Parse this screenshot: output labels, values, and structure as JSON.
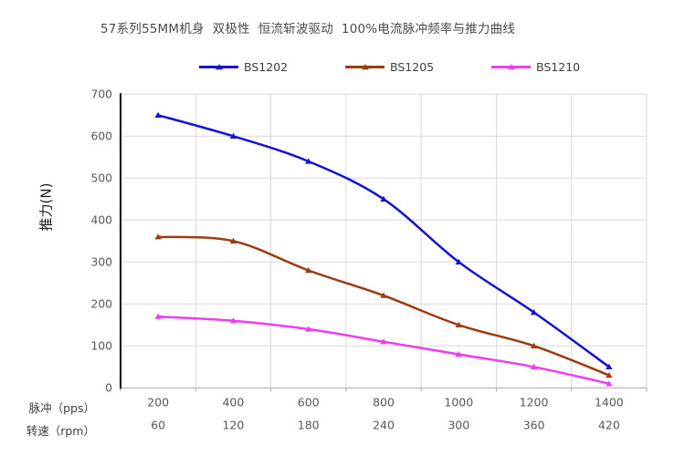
{
  "chart_data": {
    "type": "line",
    "title": "57系列55MM机身  双极性  恒流斩波驱动  100%电流脉冲频率与推力曲线",
    "ylabel": "推力(N)",
    "ylim": [
      0,
      700
    ],
    "y_ticks": [
      0,
      100,
      200,
      300,
      400,
      500,
      600,
      700
    ],
    "grid": true,
    "legend_position": "top",
    "x_axis_rows": [
      {
        "label": "脉冲（pps）",
        "values": [
          200,
          400,
          600,
          800,
          1000,
          1200,
          1400
        ]
      },
      {
        "label": "转速（rpm）",
        "values": [
          60,
          120,
          180,
          240,
          300,
          360,
          420
        ]
      }
    ],
    "series": [
      {
        "name": "BS1202",
        "color": "#1414d2",
        "values": [
          650,
          600,
          540,
          450,
          300,
          180,
          50
        ]
      },
      {
        "name": "BS1205",
        "color": "#9a3c10",
        "values": [
          360,
          350,
          280,
          220,
          150,
          100,
          30
        ]
      },
      {
        "name": "BS1210",
        "color": "#ee3cee",
        "values": [
          170,
          160,
          140,
          110,
          80,
          50,
          10
        ]
      }
    ],
    "style": {
      "gridline_color": "#d9d9d9",
      "zero_line_color": "#bfbfbf",
      "axis_color": "#000000",
      "tick_mark_color": "#a6a6a6",
      "tick_text_color": "#595959"
    }
  }
}
